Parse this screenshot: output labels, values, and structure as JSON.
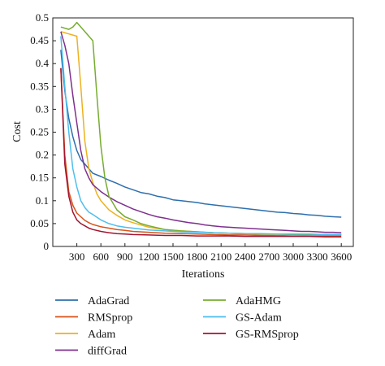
{
  "chart_data": {
    "type": "line",
    "title": "",
    "xlabel": "Iterations",
    "ylabel": "Cost",
    "xlim": [
      0,
      3750
    ],
    "ylim": [
      0,
      0.5
    ],
    "x_ticks": [
      300,
      600,
      900,
      1200,
      1500,
      1800,
      2100,
      2400,
      2700,
      3000,
      3300,
      3600
    ],
    "y_ticks": [
      0,
      0.05,
      0.1,
      0.15,
      0.2,
      0.25,
      0.3,
      0.35,
      0.4,
      0.45,
      0.5
    ],
    "x_tick_labels": [
      "300",
      "600",
      "900",
      "1200",
      "1500",
      "1800",
      "2100",
      "2400",
      "2700",
      "3000",
      "3300",
      "3600"
    ],
    "y_tick_labels": [
      "0",
      "0.05",
      "0.1",
      "0.15",
      "0.2",
      "0.25",
      "0.3",
      "0.35",
      "0.4",
      "0.45",
      "0.5"
    ],
    "grid": false,
    "legend_position": "bottom",
    "series": [
      {
        "name": "AdaGrad",
        "color": "#2e6fad",
        "x": [
          100,
          150,
          200,
          250,
          300,
          350,
          400,
          450,
          500,
          600,
          700,
          800,
          900,
          1000,
          1100,
          1200,
          1300,
          1400,
          1500,
          1600,
          1700,
          1800,
          1900,
          2000,
          2100,
          2200,
          2300,
          2400,
          2500,
          2600,
          2700,
          2800,
          2900,
          3000,
          3100,
          3200,
          3300,
          3400,
          3500,
          3600
        ],
        "y": [
          0.43,
          0.34,
          0.28,
          0.24,
          0.21,
          0.19,
          0.18,
          0.17,
          0.16,
          0.153,
          0.145,
          0.138,
          0.13,
          0.124,
          0.118,
          0.115,
          0.11,
          0.107,
          0.102,
          0.1,
          0.098,
          0.096,
          0.093,
          0.091,
          0.089,
          0.087,
          0.085,
          0.083,
          0.081,
          0.079,
          0.077,
          0.075,
          0.074,
          0.072,
          0.071,
          0.069,
          0.068,
          0.066,
          0.065,
          0.064
        ]
      },
      {
        "name": "RMSprop",
        "color": "#d95319",
        "x": [
          100,
          150,
          200,
          250,
          300,
          350,
          400,
          450,
          500,
          600,
          700,
          800,
          900,
          1000,
          1200,
          1400,
          1600,
          1800,
          2000,
          2200,
          2400,
          2600,
          2800,
          3000,
          3200,
          3400,
          3600
        ],
        "y": [
          0.39,
          0.2,
          0.12,
          0.09,
          0.073,
          0.065,
          0.057,
          0.052,
          0.048,
          0.043,
          0.04,
          0.037,
          0.035,
          0.033,
          0.031,
          0.029,
          0.028,
          0.027,
          0.026,
          0.025,
          0.025,
          0.024,
          0.024,
          0.023,
          0.023,
          0.023,
          0.023
        ]
      },
      {
        "name": "Adam",
        "color": "#edb120",
        "x": [
          100,
          200,
          300,
          350,
          400,
          450,
          500,
          550,
          600,
          700,
          800,
          900,
          1000,
          1200,
          1400,
          1600,
          1800,
          2000,
          2200,
          2400,
          2600,
          2800,
          3000,
          3200,
          3400,
          3600
        ],
        "y": [
          0.47,
          0.465,
          0.46,
          0.35,
          0.23,
          0.17,
          0.14,
          0.115,
          0.1,
          0.08,
          0.068,
          0.058,
          0.052,
          0.042,
          0.037,
          0.034,
          0.032,
          0.03,
          0.029,
          0.028,
          0.027,
          0.026,
          0.026,
          0.025,
          0.025,
          0.025
        ]
      },
      {
        "name": "diffGrad",
        "color": "#7e2f8e",
        "x": [
          100,
          150,
          200,
          250,
          300,
          350,
          400,
          450,
          500,
          600,
          700,
          800,
          900,
          1000,
          1100,
          1200,
          1300,
          1400,
          1500,
          1600,
          1700,
          1800,
          1900,
          2000,
          2100,
          2200,
          2300,
          2400,
          2500,
          2600,
          2700,
          2800,
          2900,
          3000,
          3100,
          3200,
          3300,
          3400,
          3500,
          3600
        ],
        "y": [
          0.47,
          0.44,
          0.4,
          0.33,
          0.27,
          0.21,
          0.17,
          0.15,
          0.135,
          0.12,
          0.108,
          0.098,
          0.09,
          0.082,
          0.076,
          0.07,
          0.065,
          0.062,
          0.058,
          0.055,
          0.052,
          0.05,
          0.047,
          0.045,
          0.043,
          0.042,
          0.041,
          0.04,
          0.039,
          0.038,
          0.037,
          0.036,
          0.035,
          0.034,
          0.033,
          0.033,
          0.032,
          0.031,
          0.031,
          0.03
        ]
      },
      {
        "name": "AdaHMG",
        "color": "#77ac30",
        "x": [
          100,
          200,
          250,
          300,
          400,
          500,
          550,
          600,
          650,
          700,
          800,
          900,
          1000,
          1100,
          1200,
          1400,
          1600,
          1800,
          2000,
          2200,
          2400,
          2600,
          2800,
          3000,
          3200,
          3400,
          3600
        ],
        "y": [
          0.48,
          0.475,
          0.48,
          0.49,
          0.47,
          0.45,
          0.33,
          0.22,
          0.15,
          0.11,
          0.08,
          0.065,
          0.058,
          0.05,
          0.045,
          0.037,
          0.034,
          0.032,
          0.03,
          0.029,
          0.028,
          0.027,
          0.027,
          0.026,
          0.026,
          0.026,
          0.026
        ]
      },
      {
        "name": "GS-Adam",
        "color": "#4dbeee",
        "x": [
          100,
          150,
          200,
          250,
          300,
          350,
          400,
          450,
          500,
          600,
          700,
          800,
          900,
          1000,
          1200,
          1400,
          1600,
          1800,
          2000,
          2200,
          2400,
          2600,
          2800,
          3000,
          3200,
          3400,
          3600
        ],
        "y": [
          0.46,
          0.35,
          0.25,
          0.17,
          0.13,
          0.1,
          0.085,
          0.075,
          0.07,
          0.058,
          0.05,
          0.045,
          0.042,
          0.04,
          0.036,
          0.034,
          0.032,
          0.031,
          0.03,
          0.029,
          0.028,
          0.028,
          0.027,
          0.027,
          0.027,
          0.026,
          0.026
        ]
      },
      {
        "name": "GS-RMSprop",
        "color": "#a2142f",
        "x": [
          100,
          150,
          200,
          250,
          300,
          350,
          400,
          450,
          500,
          600,
          700,
          800,
          900,
          1000,
          1200,
          1400,
          1600,
          1800,
          2000,
          2200,
          2400,
          2600,
          2800,
          3000,
          3200,
          3400,
          3600
        ],
        "y": [
          0.39,
          0.18,
          0.11,
          0.075,
          0.058,
          0.05,
          0.045,
          0.04,
          0.037,
          0.033,
          0.03,
          0.028,
          0.027,
          0.026,
          0.025,
          0.024,
          0.024,
          0.023,
          0.023,
          0.023,
          0.022,
          0.022,
          0.022,
          0.022,
          0.022,
          0.021,
          0.021
        ]
      }
    ]
  }
}
